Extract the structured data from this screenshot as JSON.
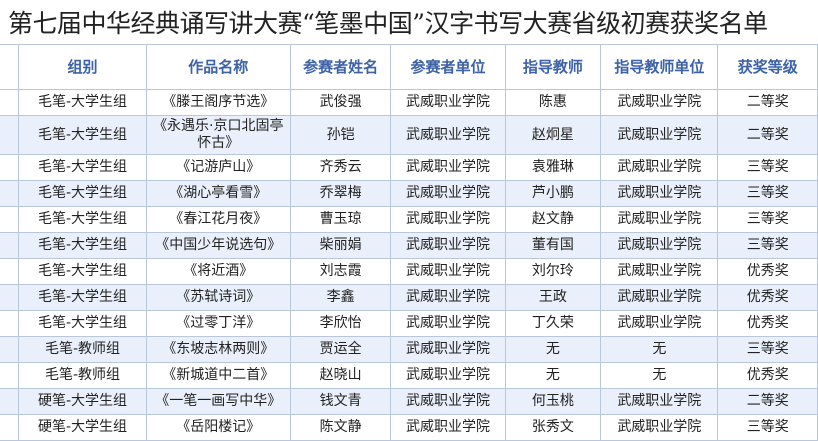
{
  "title": "第七届中华经典诵写讲大赛“笔墨中国”汉字书写大赛省级初赛获奖名单",
  "table": {
    "headers": [
      "组别",
      "作品名称",
      "参赛者姓名",
      "参赛者单位",
      "指导教师",
      "指导教师单位",
      "获奖等级"
    ],
    "rows": [
      [
        "毛笔-大学生组",
        "《滕王阁序节选》",
        "武俊强",
        "武威职业学院",
        "陈惠",
        "武威职业学院",
        "二等奖"
      ],
      [
        "毛笔-大学生组",
        "《永遇乐·京口北固亭怀古》",
        "孙铠",
        "武威职业学院",
        "赵炯星",
        "武威职业学院",
        "二等奖"
      ],
      [
        "毛笔-大学生组",
        "《记游庐山》",
        "齐秀云",
        "武威职业学院",
        "袁雅琳",
        "武威职业学院",
        "三等奖"
      ],
      [
        "毛笔-大学生组",
        "《湖心亭看雪》",
        "乔翠梅",
        "武威职业学院",
        "芦小鹏",
        "武威职业学院",
        "三等奖"
      ],
      [
        "毛笔-大学生组",
        "《春江花月夜》",
        "曹玉琼",
        "武威职业学院",
        "赵文静",
        "武威职业学院",
        "三等奖"
      ],
      [
        "毛笔-大学生组",
        "《中国少年说选句》",
        "柴丽娟",
        "武威职业学院",
        "董有国",
        "武威职业学院",
        "三等奖"
      ],
      [
        "毛笔-大学生组",
        "《将近酒》",
        "刘志霞",
        "武威职业学院",
        "刘尔玲",
        "武威职业学院",
        "优秀奖"
      ],
      [
        "毛笔-大学生组",
        "《苏轼诗词》",
        "李鑫",
        "武威职业学院",
        "王政",
        "武威职业学院",
        "优秀奖"
      ],
      [
        "毛笔-大学生组",
        "《过零丁洋》",
        "李欣怡",
        "武威职业学院",
        "丁久荣",
        "武威职业学院",
        "优秀奖"
      ],
      [
        "毛笔-教师组",
        "《东坡志林两则》",
        "贾运全",
        "武威职业学院",
        "无",
        "无",
        "三等奖"
      ],
      [
        "毛笔-教师组",
        "《新城道中二首》",
        "赵晓山",
        "武威职业学院",
        "无",
        "无",
        "优秀奖"
      ],
      [
        "硬笔-大学生组",
        "《一笔一画写中华》",
        "钱文青",
        "武威职业学院",
        "何玉桃",
        "武威职业学院",
        "二等奖"
      ],
      [
        "硬笔-大学生组",
        "《岳阳楼记》",
        "陈文静",
        "武威职业学院",
        "张秀文",
        "武威职业学院",
        "三等奖"
      ]
    ]
  }
}
